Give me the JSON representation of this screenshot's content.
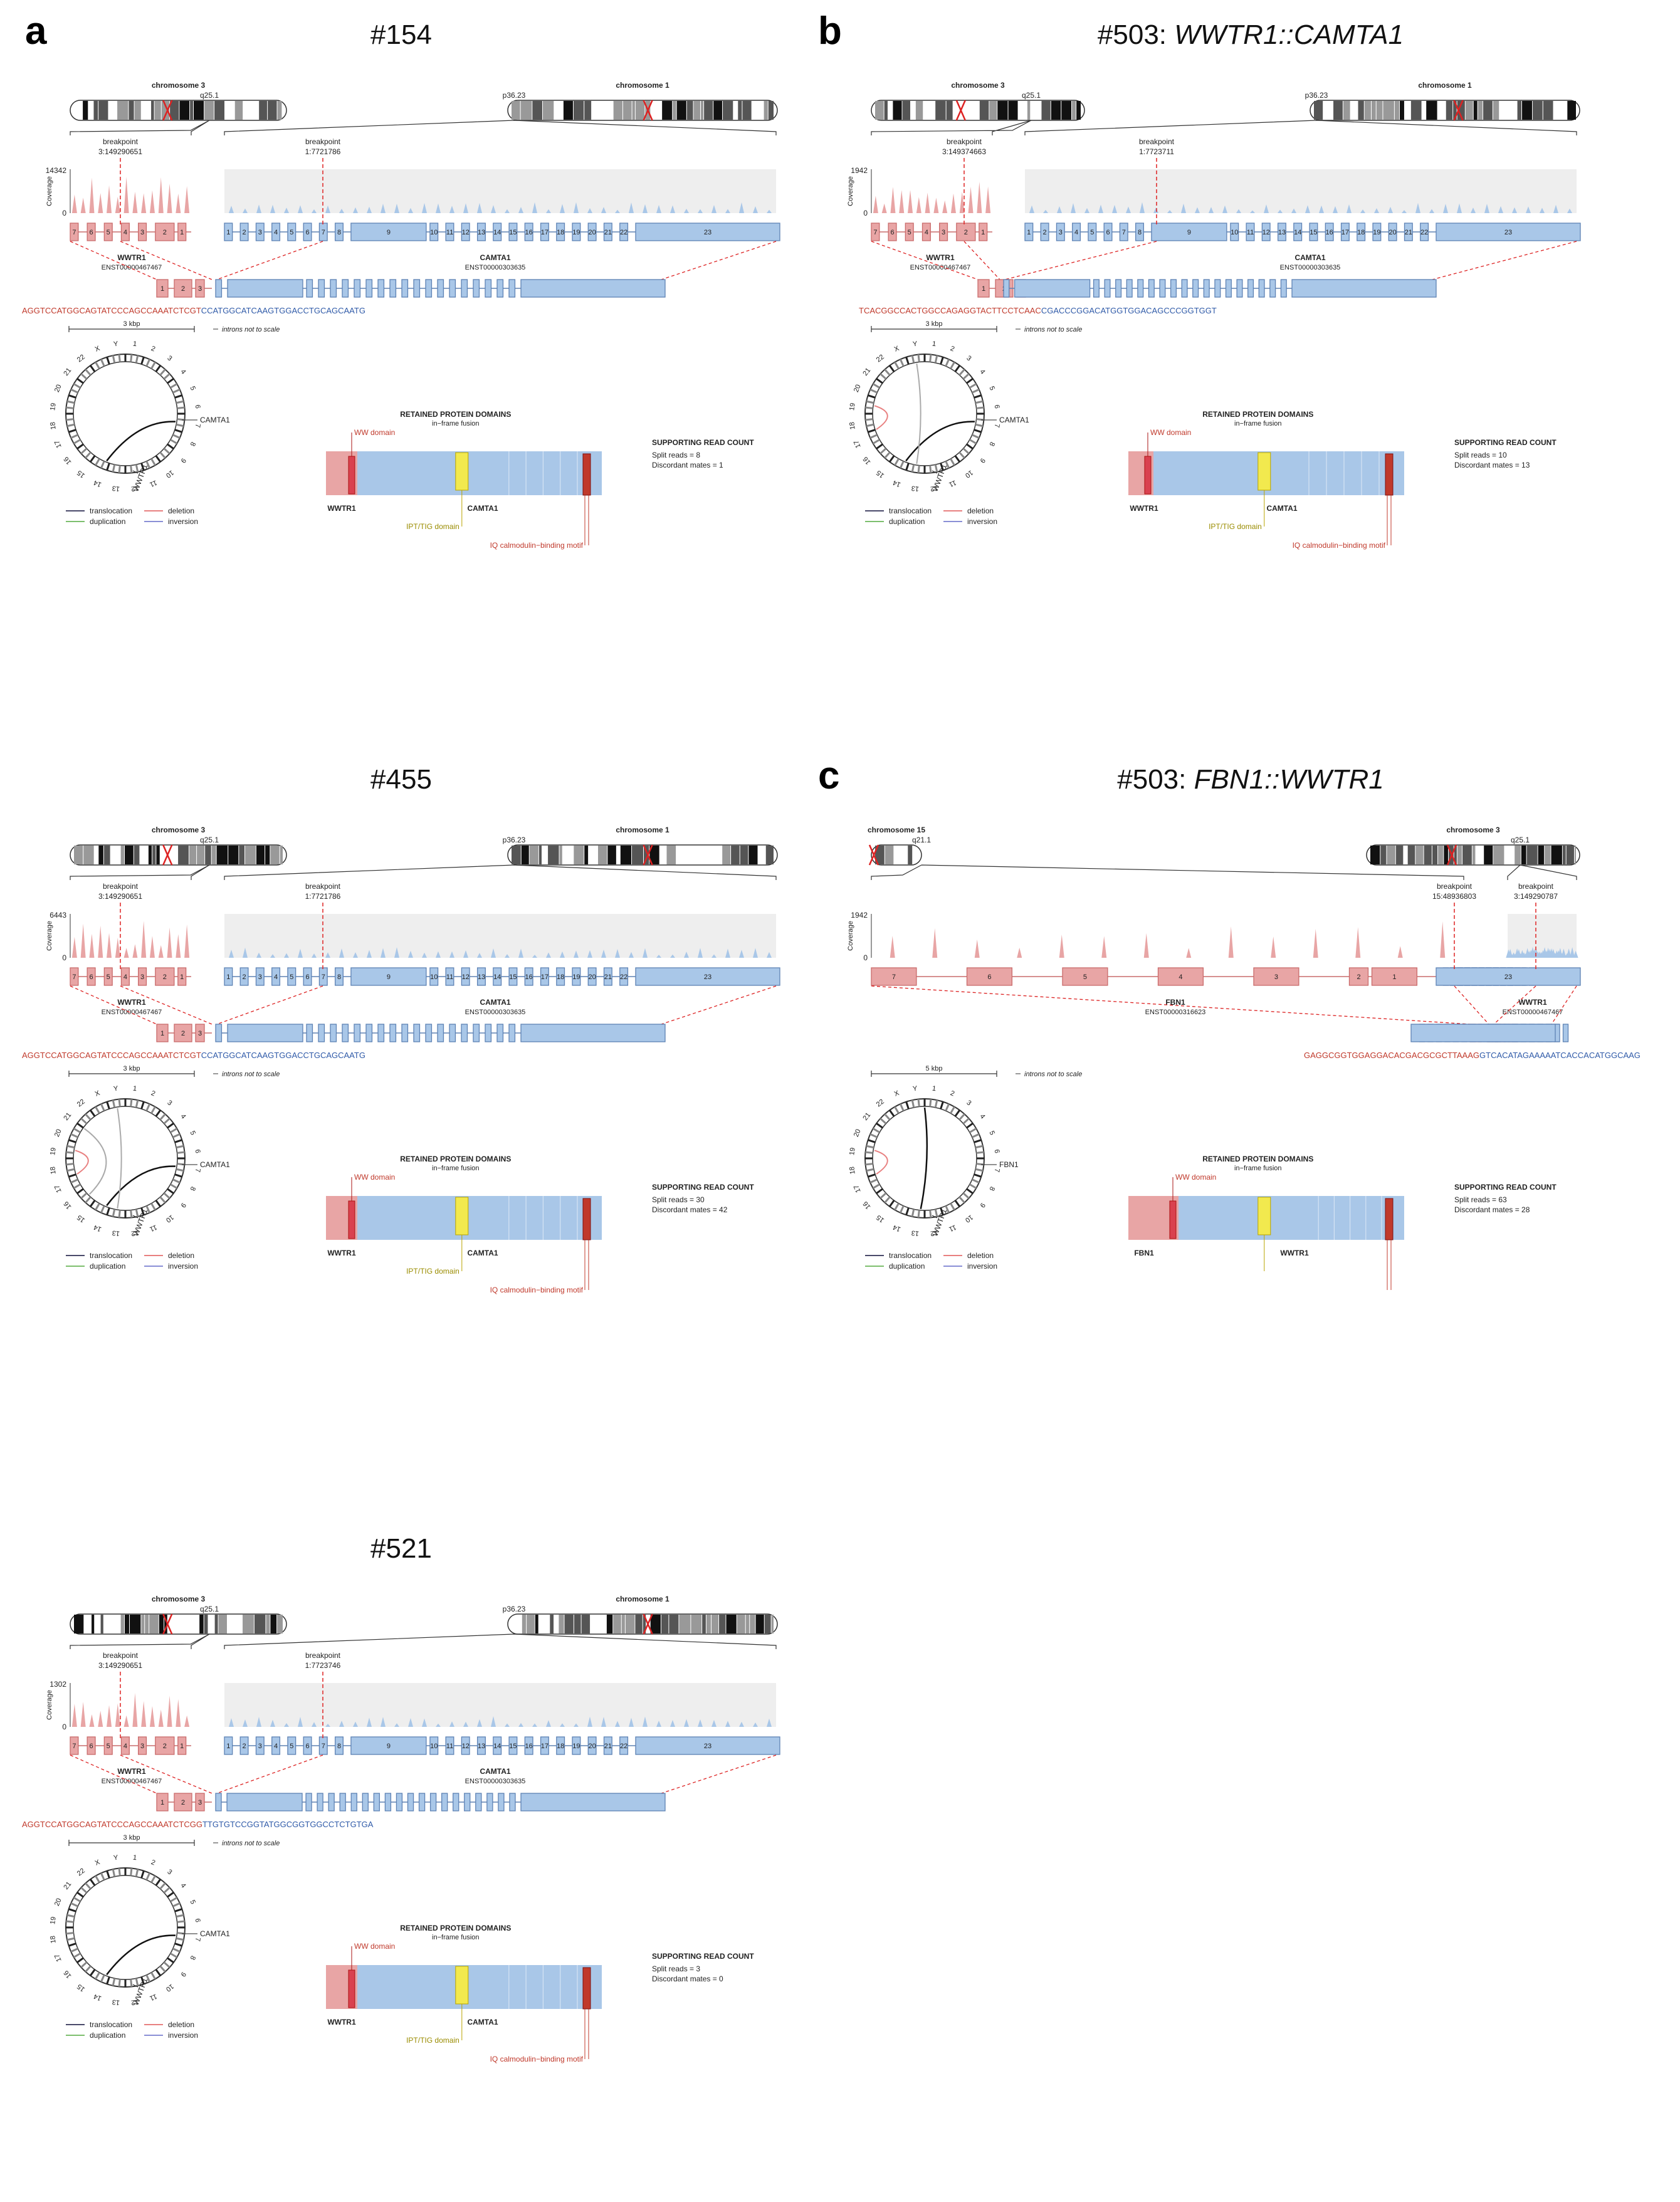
{
  "colors": {
    "wwtr1": "#e8a5a5",
    "wwtr1_dark": "#c96b6b",
    "partner": "#a9c7e8",
    "partner_dark": "#5e82b4",
    "seq_red": "#c0392b",
    "seq_blue": "#2f5aa8",
    "ww_domain": "#d9414f",
    "ipt_domain": "#f2e94e",
    "iq_motif": "#c0392b",
    "coverage_bg": "#eeeeee",
    "link_translocation": "#4a4a6a",
    "link_deletion": "#e88080",
    "link_duplication": "#7dbf6e",
    "link_inversion": "#8a8fd6"
  },
  "common": {
    "breakpoint_word": "breakpoint",
    "coverage_label": "Coverage",
    "introns_note": "introns not to scale",
    "domains_title": "RETAINED PROTEIN DOMAINS",
    "domains_subtitle": "in−frame fusion",
    "read_count_title": "SUPPORTING READ COUNT",
    "legend": [
      "translocation",
      "deletion",
      "duplication",
      "inversion"
    ],
    "circos_labels": [
      "1",
      "2",
      "3",
      "4",
      "5",
      "6",
      "7",
      "8",
      "9",
      "10",
      "11",
      "12",
      "13",
      "14",
      "15",
      "16",
      "17",
      "18",
      "19",
      "20",
      "21",
      "22",
      "X",
      "Y"
    ]
  },
  "panels": [
    {
      "letter": "a",
      "title": "#154",
      "title_italic": "",
      "left_chrom": "chromosome 3",
      "left_band": "q25.1",
      "right_chrom": "chromosome 1",
      "right_band": "p36.23",
      "bp1_label": "breakpoint",
      "bp1_pos": "3:149290651",
      "bp2_label": "breakpoint",
      "bp2_pos": "1:7721786",
      "coverage_max": "14342",
      "gene1": "WWTR1",
      "gene1_tx": "ENST00000467467",
      "gene2": "CAMTA1",
      "gene2_tx": "ENST00000303635",
      "seq_left": "AGGTCCATGGCAGTATCCCAGCCAAATCTCGT",
      "seq_right": "CCATGGCATCAAGTGGACCTGCAGCAATG",
      "scale_label": "3 kbp",
      "split_reads": "Split reads = 8",
      "discordant": "Discordant mates = 1",
      "protein_left": "WWTR1",
      "protein_right": "CAMTA1",
      "domain_ww": "WW domain",
      "domain_ipt": "IPT/TIG domain",
      "domain_iq": "IQ calmodulin−binding motif",
      "circos_partner": "CAMTA1",
      "circos_gene": "WWTR1"
    },
    {
      "letter": "b",
      "title": "#503: ",
      "title_italic": "WWTR1::CAMTA1",
      "left_chrom": "chromosome 3",
      "left_band": "q25.1",
      "right_chrom": "chromosome 1",
      "right_band": "p36.23",
      "bp1_label": "breakpoint",
      "bp1_pos": "3:149374663",
      "bp2_label": "breakpoint",
      "bp2_pos": "1:7723711",
      "coverage_max": "1942",
      "gene1": "WWTR1",
      "gene1_tx": "ENST00000467467",
      "gene2": "CAMTA1",
      "gene2_tx": "ENST00000303635",
      "seq_left": "TCACGGCCACTGGCCAGAGGTACTTCCTCAAC",
      "seq_right": "CGACCCGGACATGGTGGACAGCCCGGTGGT",
      "scale_label": "3 kbp",
      "split_reads": "Split reads = 10",
      "discordant": "Discordant mates = 13",
      "protein_left": "WWTR1",
      "protein_right": "CAMTA1",
      "domain_ww": "WW domain",
      "domain_ipt": "IPT/TIG domain",
      "domain_iq": "IQ calmodulin−binding motif",
      "circos_partner": "CAMTA1",
      "circos_gene": "WWTR1"
    },
    {
      "letter": "",
      "title": "#455",
      "title_italic": "",
      "left_chrom": "chromosome 3",
      "left_band": "q25.1",
      "right_chrom": "chromosome 1",
      "right_band": "p36.23",
      "bp1_label": "breakpoint",
      "bp1_pos": "3:149290651",
      "bp2_label": "breakpoint",
      "bp2_pos": "1:7721786",
      "coverage_max": "6443",
      "gene1": "WWTR1",
      "gene1_tx": "ENST00000467467",
      "gene2": "CAMTA1",
      "gene2_tx": "ENST00000303635",
      "seq_left": "AGGTCCATGGCAGTATCCCAGCCAAATCTCGT",
      "seq_right": "CCATGGCATCAAGTGGACCTGCAGCAATG",
      "scale_label": "3 kbp",
      "split_reads": "Split reads = 30",
      "discordant": "Discordant mates = 42",
      "protein_left": "WWTR1",
      "protein_right": "CAMTA1",
      "domain_ww": "WW domain",
      "domain_ipt": "IPT/TIG domain",
      "domain_iq": "IQ calmodulin−binding motif",
      "circos_partner": "CAMTA1",
      "circos_gene": "WWTR1"
    },
    {
      "letter": "c",
      "title": "#503: ",
      "title_italic": "FBN1::WWTR1",
      "left_chrom": "chromosome 15",
      "left_band": "q21.1",
      "right_chrom": "chromosome 3",
      "right_band": "q25.1",
      "bp1_label": "breakpoint",
      "bp1_pos": "15:48936803",
      "bp2_label": "breakpoint",
      "bp2_pos": "3:149290787",
      "coverage_max": "1942",
      "gene1": "FBN1",
      "gene1_tx": "ENST00000316623",
      "gene2": "WWTR1",
      "gene2_tx": "ENST00000467467",
      "seq_left": "GAGGCGGTGGAGGACACGACGCGCTTAAAG",
      "seq_right": "GTCACATAGAAAAATCACCACATGGCAAG",
      "scale_label": "5 kbp",
      "split_reads": "Split reads = 63",
      "discordant": "Discordant mates = 28",
      "protein_left": "FBN1",
      "protein_right": "WWTR1",
      "domain_ww": "WW domain",
      "circos_partner": "FBN1",
      "circos_gene": "WWTR1"
    },
    {
      "letter": "",
      "title": "#521",
      "title_italic": "",
      "left_chrom": "chromosome 3",
      "left_band": "q25.1",
      "right_chrom": "chromosome 1",
      "right_band": "p36.23",
      "bp1_label": "breakpoint",
      "bp1_pos": "3:149290651",
      "bp2_label": "breakpoint",
      "bp2_pos": "1:7723746",
      "coverage_max": "1302",
      "gene1": "WWTR1",
      "gene1_tx": "ENST00000467467",
      "gene2": "CAMTA1",
      "gene2_tx": "ENST00000303635",
      "seq_left": "AGGTCCATGGCAGTATCCCAGCCAAATCTCGG",
      "seq_right": "TTGTGTCCGGTATGGCGGTGGCCTCTGTGA",
      "scale_label": "3 kbp",
      "split_reads": "Split reads = 3",
      "discordant": "Discordant mates = 0",
      "protein_left": "WWTR1",
      "protein_right": "CAMTA1",
      "domain_ww": "WW domain",
      "domain_ipt": "IPT/TIG domain",
      "domain_iq": "IQ calmodulin−binding motif",
      "circos_partner": "CAMTA1",
      "circos_gene": "WWTR1"
    }
  ]
}
